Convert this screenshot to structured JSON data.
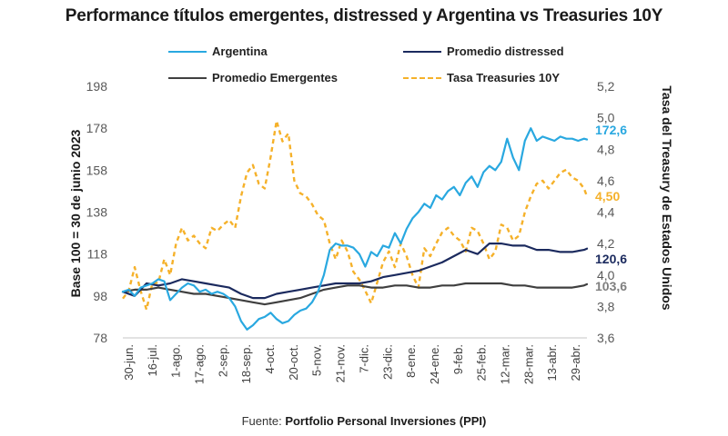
{
  "chart_data": {
    "type": "line",
    "title": "Performance títulos emergentes, distressed y Argentina vs Treasuries 10Y",
    "source_prefix": "Fuente: ",
    "source_name": "Portfolio Personal Inversiones (PPI)",
    "ylabel": "Base 100 = 30 de junio 2023",
    "y2label": "Tasa del Treasury de Estados Unidos",
    "xlabel": "",
    "ylim": [
      78,
      198
    ],
    "y2lim": [
      3.6,
      5.2
    ],
    "yticks": [
      "78",
      "98",
      "118",
      "138",
      "158",
      "178",
      "198"
    ],
    "y2ticks": [
      "3,6",
      "3,8",
      "4,0",
      "4,2",
      "4,4",
      "4,6",
      "4,8",
      "5,0",
      "5,2"
    ],
    "grid": false,
    "legend_position": "top",
    "x_tick_labels": [
      "30-jun.",
      "16-jul.",
      "1-ago.",
      "17-ago.",
      "2-sep.",
      "18-sep.",
      "4-oct.",
      "20-oct.",
      "5-nov.",
      "21-nov.",
      "7-dic.",
      "23-dic.",
      "8-ene.",
      "24-ene.",
      "9-feb.",
      "25-feb.",
      "12-mar.",
      "28-mar.",
      "13-abr.",
      "29-abr."
    ],
    "x_range_days": [
      0,
      314
    ],
    "series": [
      {
        "name": "Argentina",
        "axis": "left",
        "color": "#29a8e0",
        "dash": false,
        "end_label": "172,6",
        "x": [
          0,
          4,
          8,
          12,
          16,
          20,
          24,
          28,
          32,
          36,
          40,
          44,
          48,
          52,
          56,
          60,
          64,
          68,
          72,
          76,
          80,
          84,
          88,
          92,
          96,
          100,
          104,
          108,
          112,
          116,
          120,
          124,
          128,
          132,
          136,
          140,
          144,
          148,
          152,
          156,
          160,
          164,
          168,
          172,
          176,
          180,
          184,
          188,
          192,
          196,
          200,
          204,
          208,
          212,
          216,
          220,
          224,
          228,
          232,
          236,
          240,
          244,
          248,
          252,
          256,
          260,
          264,
          268,
          272,
          276,
          280,
          284,
          288,
          292,
          296,
          300,
          304,
          308,
          312,
          314
        ],
        "values": [
          100,
          101,
          98,
          102,
          103,
          104,
          106,
          105,
          96,
          99,
          102,
          104,
          103,
          100,
          101,
          99,
          100,
          99,
          97,
          93,
          86,
          82,
          84,
          87,
          88,
          90,
          87,
          85,
          86,
          89,
          91,
          92,
          95,
          100,
          108,
          120,
          123,
          122,
          122,
          121,
          118,
          112,
          119,
          117,
          122,
          121,
          128,
          123,
          130,
          135,
          138,
          142,
          140,
          146,
          144,
          148,
          150,
          146,
          152,
          155,
          150,
          157,
          160,
          158,
          162,
          173,
          164,
          158,
          172,
          178,
          172,
          174,
          173,
          172,
          174,
          173,
          173,
          172,
          173,
          172.6
        ]
      },
      {
        "name": "Promedio distressed",
        "axis": "left",
        "color": "#1b2a5e",
        "dash": false,
        "end_label": "120,6",
        "x": [
          0,
          8,
          16,
          24,
          32,
          40,
          48,
          56,
          64,
          72,
          80,
          88,
          96,
          104,
          112,
          120,
          128,
          136,
          144,
          152,
          160,
          168,
          176,
          184,
          192,
          200,
          208,
          216,
          224,
          232,
          240,
          248,
          256,
          264,
          272,
          280,
          288,
          296,
          304,
          312,
          314
        ],
        "values": [
          100,
          98,
          104,
          103,
          104,
          106,
          105,
          104,
          103,
          102,
          99,
          97,
          97,
          99,
          100,
          101,
          102,
          103,
          104,
          104,
          104,
          105,
          107,
          108,
          109,
          110,
          112,
          114,
          117,
          120,
          118,
          123,
          123,
          122,
          122,
          120,
          120,
          119,
          119,
          120,
          120.6
        ]
      },
      {
        "name": "Promedio Emergentes",
        "axis": "left",
        "color": "#3f3f3f",
        "dash": false,
        "end_label": "103,6",
        "x": [
          0,
          8,
          16,
          24,
          32,
          40,
          48,
          56,
          64,
          72,
          80,
          88,
          96,
          104,
          112,
          120,
          128,
          136,
          144,
          152,
          160,
          168,
          176,
          184,
          192,
          200,
          208,
          216,
          224,
          232,
          240,
          248,
          256,
          264,
          272,
          280,
          288,
          296,
          304,
          312,
          314
        ],
        "values": [
          100,
          101,
          101,
          102,
          101,
          100,
          99,
          99,
          98,
          97,
          96,
          95,
          94,
          95,
          96,
          97,
          99,
          101,
          102,
          103,
          103,
          102,
          102,
          103,
          103,
          102,
          102,
          103,
          103,
          104,
          104,
          104,
          104,
          103,
          103,
          102,
          102,
          102,
          102,
          103,
          103.6
        ]
      },
      {
        "name": "Tasa Treasuries 10Y",
        "axis": "right",
        "color": "#f5b12a",
        "dash": true,
        "end_label": "4,50",
        "x": [
          0,
          4,
          8,
          12,
          16,
          20,
          24,
          28,
          32,
          36,
          40,
          44,
          48,
          52,
          56,
          60,
          64,
          68,
          72,
          76,
          80,
          84,
          88,
          92,
          96,
          100,
          104,
          108,
          112,
          116,
          120,
          124,
          128,
          132,
          136,
          140,
          144,
          148,
          152,
          156,
          160,
          164,
          168,
          172,
          176,
          180,
          184,
          188,
          192,
          196,
          200,
          204,
          208,
          212,
          216,
          220,
          224,
          228,
          232,
          236,
          240,
          244,
          248,
          252,
          256,
          260,
          264,
          268,
          272,
          276,
          280,
          284,
          288,
          292,
          296,
          300,
          304,
          308,
          312,
          314
        ],
        "values": [
          3.85,
          3.9,
          4.05,
          3.9,
          3.78,
          3.95,
          3.95,
          4.1,
          4.0,
          4.2,
          4.3,
          4.22,
          4.25,
          4.2,
          4.17,
          4.3,
          4.28,
          4.32,
          4.35,
          4.3,
          4.5,
          4.65,
          4.7,
          4.58,
          4.55,
          4.75,
          4.98,
          4.85,
          4.9,
          4.6,
          4.52,
          4.5,
          4.45,
          4.38,
          4.35,
          4.2,
          4.1,
          4.22,
          4.15,
          4.02,
          3.97,
          3.9,
          3.82,
          3.95,
          4.08,
          4.15,
          4.05,
          4.2,
          4.12,
          4.0,
          3.92,
          4.17,
          4.12,
          4.2,
          4.27,
          4.3,
          4.25,
          4.22,
          4.15,
          4.3,
          4.28,
          4.2,
          4.1,
          4.15,
          4.32,
          4.3,
          4.22,
          4.25,
          4.4,
          4.5,
          4.58,
          4.6,
          4.55,
          4.6,
          4.65,
          4.67,
          4.62,
          4.6,
          4.55,
          4.5
        ]
      }
    ]
  }
}
